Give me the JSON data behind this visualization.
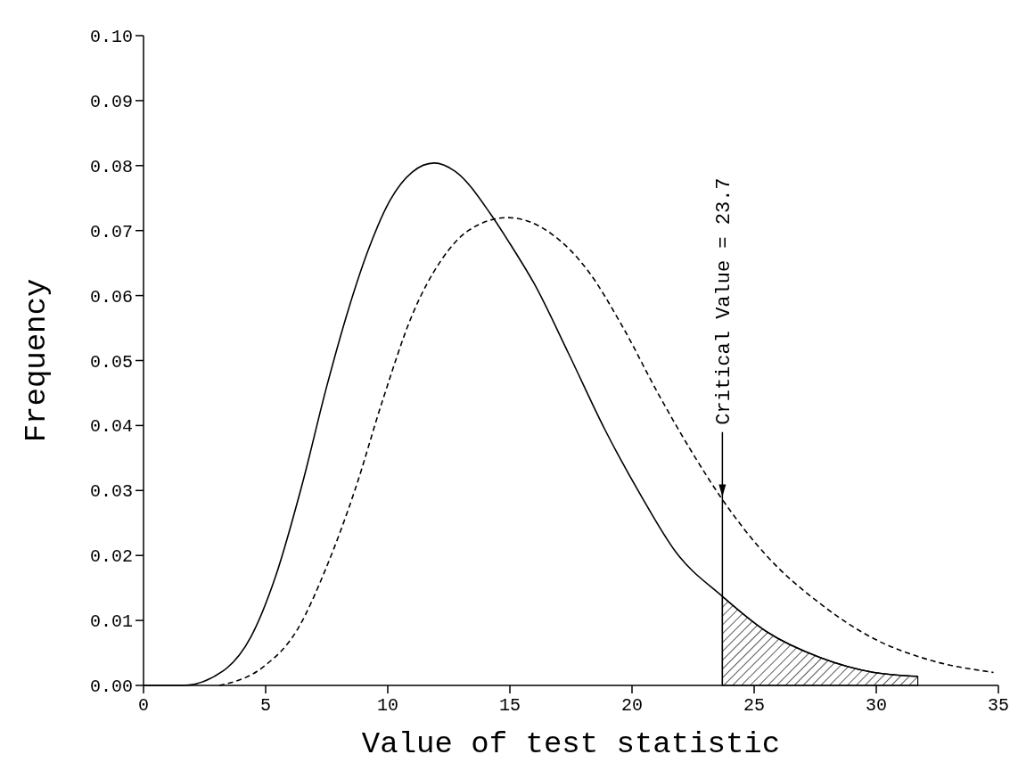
{
  "chart_data": {
    "type": "line",
    "xlabel": "Value of test statistic",
    "ylabel": "Frequency",
    "xlim": [
      0,
      35
    ],
    "xticks": [
      0,
      5,
      10,
      15,
      20,
      25,
      30,
      35
    ],
    "ylim": [
      0,
      0.1
    ],
    "yticks": [
      {
        "value": 0,
        "label": "0.00"
      },
      {
        "value": 0.01,
        "label": "0.01"
      },
      {
        "value": 0.02,
        "label": "0.02"
      },
      {
        "value": 0.03,
        "label": "0.03"
      },
      {
        "value": 0.04,
        "label": "0.04"
      },
      {
        "value": 0.05,
        "label": "0.05"
      },
      {
        "value": 0.06,
        "label": "0.06"
      },
      {
        "value": 0.07,
        "label": "0.07"
      },
      {
        "value": 0.08,
        "label": "0.08"
      },
      {
        "value": 0.09,
        "label": "0.09"
      },
      {
        "value": 0.1,
        "label": "0.10"
      }
    ],
    "grid": false,
    "series": [
      {
        "color": "#000000",
        "line_style": "solid",
        "x": [
          0,
          1.6,
          3.25,
          4.4,
          5.4,
          6.5,
          7.5,
          8.4,
          9.2,
          10.1,
          11,
          11.9,
          12.8,
          14.2,
          15,
          16,
          17.4,
          18.9,
          20.4,
          21.8,
          23.7,
          25.5,
          27.7,
          29.9,
          31.7
        ],
        "values": [
          0,
          0,
          0.0022,
          0.0075,
          0.0167,
          0.031,
          0.046,
          0.058,
          0.067,
          0.0747,
          0.079,
          0.0804,
          0.079,
          0.0726,
          0.068,
          0.0618,
          0.0511,
          0.0393,
          0.029,
          0.0205,
          0.0137,
          0.0083,
          0.0043,
          0.002,
          0.0014
        ]
      },
      {
        "color": "#000000",
        "line_style": "dashed",
        "x": [
          3.1,
          4.85,
          6.3,
          7.5,
          8.65,
          9.8,
          11,
          12.2,
          13.3,
          14.9,
          16.7,
          18.2,
          19.6,
          21.1,
          22.6,
          23.7,
          25.5,
          27.7,
          29.9,
          32.1,
          34.8
        ],
        "values": [
          0,
          0.0027,
          0.0086,
          0.0183,
          0.03,
          0.044,
          0.057,
          0.0655,
          0.07,
          0.072,
          0.0695,
          0.0638,
          0.0553,
          0.0447,
          0.035,
          0.0286,
          0.02,
          0.0126,
          0.0072,
          0.004,
          0.002
        ]
      },
      {
        "type": "area",
        "color": "#000000",
        "x": [
          23.7,
          25.5,
          27.7,
          29.9,
          31.7
        ],
        "values": [
          0.0137,
          0.0083,
          0.0043,
          0.002,
          0.0014
        ]
      }
    ],
    "ref_lines": [
      {
        "axis": "x",
        "value": 23.7,
        "label": "Critical Value = 23.7",
        "color": "#000000",
        "line_style": "solid"
      }
    ]
  }
}
